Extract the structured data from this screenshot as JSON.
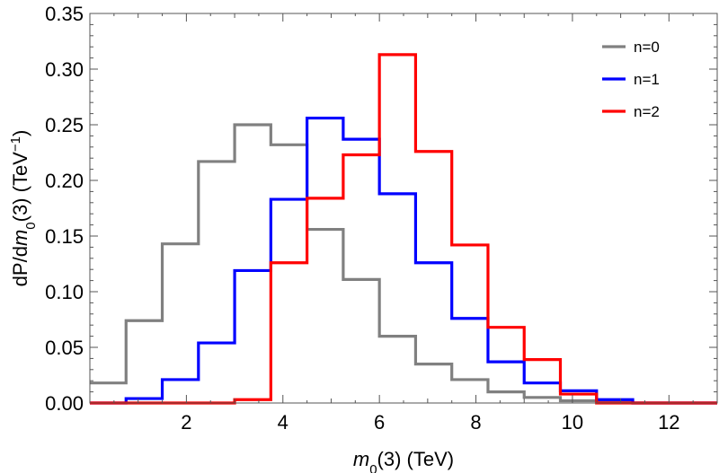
{
  "chart_data": {
    "type": "line",
    "style": "step-histogram",
    "xlabel": {
      "italic": "m",
      "sub": "0",
      "rest": "(3) (TeV)"
    },
    "ylabel": {
      "pre": "dP/d",
      "italic": "m",
      "sub": "0",
      "mid": "(3) (TeV",
      "sup": "−1",
      "post": ")"
    },
    "xlim": [
      0,
      13
    ],
    "ylim": [
      0,
      0.35
    ],
    "x_ticks": [
      2,
      4,
      6,
      8,
      10,
      12
    ],
    "x_tick_labels": [
      "2",
      "4",
      "6",
      "8",
      "10",
      "12"
    ],
    "y_ticks": [
      0,
      0.05,
      0.1,
      0.15,
      0.2,
      0.25,
      0.3,
      0.35
    ],
    "y_tick_labels": [
      "0.00",
      "0.05",
      "0.10",
      "0.15",
      "0.20",
      "0.25",
      "0.30",
      "0.35"
    ],
    "bin_edges": [
      0,
      0.75,
      1.5,
      2.25,
      3.0,
      3.75,
      4.5,
      5.25,
      6.0,
      6.75,
      7.5,
      8.25,
      9.0,
      9.75,
      10.5,
      11.25,
      13.0
    ],
    "series": [
      {
        "name": "n=0",
        "color": "#808080",
        "values": [
          0.018,
          0.074,
          0.143,
          0.217,
          0.25,
          0.232,
          0.156,
          0.111,
          0.06,
          0.035,
          0.021,
          0.01,
          0.005,
          0.002,
          0.001,
          0.0
        ]
      },
      {
        "name": "n=1",
        "color": "#0000ff",
        "values": [
          0.0,
          0.004,
          0.021,
          0.054,
          0.119,
          0.183,
          0.256,
          0.237,
          0.188,
          0.126,
          0.076,
          0.037,
          0.018,
          0.011,
          0.003,
          0.0
        ]
      },
      {
        "name": "n=2",
        "color": "#ff0000",
        "values": [
          0.0,
          0.0,
          0.0,
          0.0,
          0.003,
          0.126,
          0.184,
          0.223,
          0.313,
          0.226,
          0.142,
          0.068,
          0.039,
          0.008,
          0.0,
          0.0
        ]
      }
    ],
    "legend_position": "top-right"
  }
}
